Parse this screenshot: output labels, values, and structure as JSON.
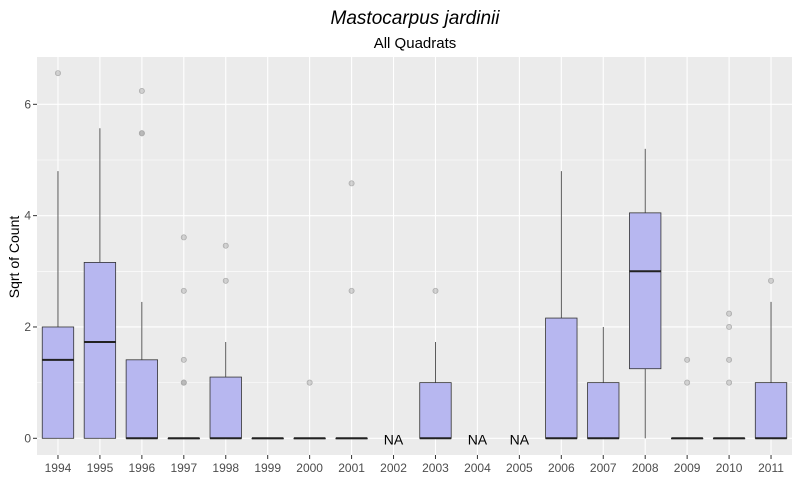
{
  "chart_data": {
    "type": "box",
    "title": "Mastocarpus jardinii",
    "subtitle": "All Quadrats",
    "xlabel": "",
    "ylabel": "Sqrt of Count",
    "ylim": [
      -0.3,
      6.85
    ],
    "yticks": [
      0,
      2,
      4,
      6
    ],
    "grid": true,
    "colors": {
      "panel": "#ebebeb",
      "grid": "#ffffff",
      "box_fill": "#b7b7f0",
      "box_line": "#333333",
      "outlier": "#aaaaaa"
    },
    "na_label": "NA",
    "categories": [
      "1994",
      "1995",
      "1996",
      "1997",
      "1998",
      "1999",
      "2000",
      "2001",
      "2002",
      "2003",
      "2004",
      "2005",
      "2006",
      "2007",
      "2008",
      "2009",
      "2010",
      "2011"
    ],
    "boxes": [
      {
        "year": "1994",
        "q1": 0,
        "median": 1.41,
        "q3": 2.0,
        "whisker_low": 0,
        "whisker_high": 4.8,
        "outliers": [
          6.56
        ]
      },
      {
        "year": "1995",
        "q1": 0,
        "median": 1.73,
        "q3": 3.16,
        "whisker_low": 0,
        "whisker_high": 5.57,
        "outliers": []
      },
      {
        "year": "1996",
        "q1": 0,
        "median": 0,
        "q3": 1.41,
        "whisker_low": 0,
        "whisker_high": 2.45,
        "outliers": [
          5.48,
          5.48,
          6.24
        ]
      },
      {
        "year": "1997",
        "q1": 0,
        "median": 0,
        "q3": 0,
        "whisker_low": 0,
        "whisker_high": 0,
        "outliers": [
          1.0,
          1.0,
          1.41,
          2.65,
          3.61
        ]
      },
      {
        "year": "1998",
        "q1": 0,
        "median": 0,
        "q3": 1.1,
        "whisker_low": 0,
        "whisker_high": 1.73,
        "outliers": [
          2.83,
          3.46
        ]
      },
      {
        "year": "1999",
        "q1": 0,
        "median": 0,
        "q3": 0,
        "whisker_low": 0,
        "whisker_high": 0,
        "outliers": []
      },
      {
        "year": "2000",
        "q1": 0,
        "median": 0,
        "q3": 0,
        "whisker_low": 0,
        "whisker_high": 0,
        "outliers": [
          1.0
        ]
      },
      {
        "year": "2001",
        "q1": 0,
        "median": 0,
        "q3": 0,
        "whisker_low": 0,
        "whisker_high": 0,
        "outliers": [
          2.65,
          4.58
        ]
      },
      {
        "year": "2002",
        "na": true
      },
      {
        "year": "2003",
        "q1": 0,
        "median": 0,
        "q3": 1.0,
        "whisker_low": 0,
        "whisker_high": 1.73,
        "outliers": [
          2.65
        ]
      },
      {
        "year": "2004",
        "na": true
      },
      {
        "year": "2005",
        "na": true
      },
      {
        "year": "2006",
        "q1": 0,
        "median": 0,
        "q3": 2.16,
        "whisker_low": 0,
        "whisker_high": 4.8,
        "outliers": []
      },
      {
        "year": "2007",
        "q1": 0,
        "median": 0,
        "q3": 1.0,
        "whisker_low": 0,
        "whisker_high": 2.0,
        "outliers": []
      },
      {
        "year": "2008",
        "q1": 1.25,
        "median": 3.0,
        "q3": 4.05,
        "whisker_low": 0,
        "whisker_high": 5.2,
        "outliers": []
      },
      {
        "year": "2009",
        "q1": 0,
        "median": 0,
        "q3": 0,
        "whisker_low": 0,
        "whisker_high": 0,
        "outliers": [
          1.0,
          1.41
        ]
      },
      {
        "year": "2010",
        "q1": 0,
        "median": 0,
        "q3": 0,
        "whisker_low": 0,
        "whisker_high": 0,
        "outliers": [
          1.0,
          1.41,
          2.0,
          2.24
        ]
      },
      {
        "year": "2011",
        "q1": 0,
        "median": 0,
        "q3": 1.0,
        "whisker_low": 0,
        "whisker_high": 2.45,
        "outliers": [
          2.83
        ]
      }
    ]
  }
}
